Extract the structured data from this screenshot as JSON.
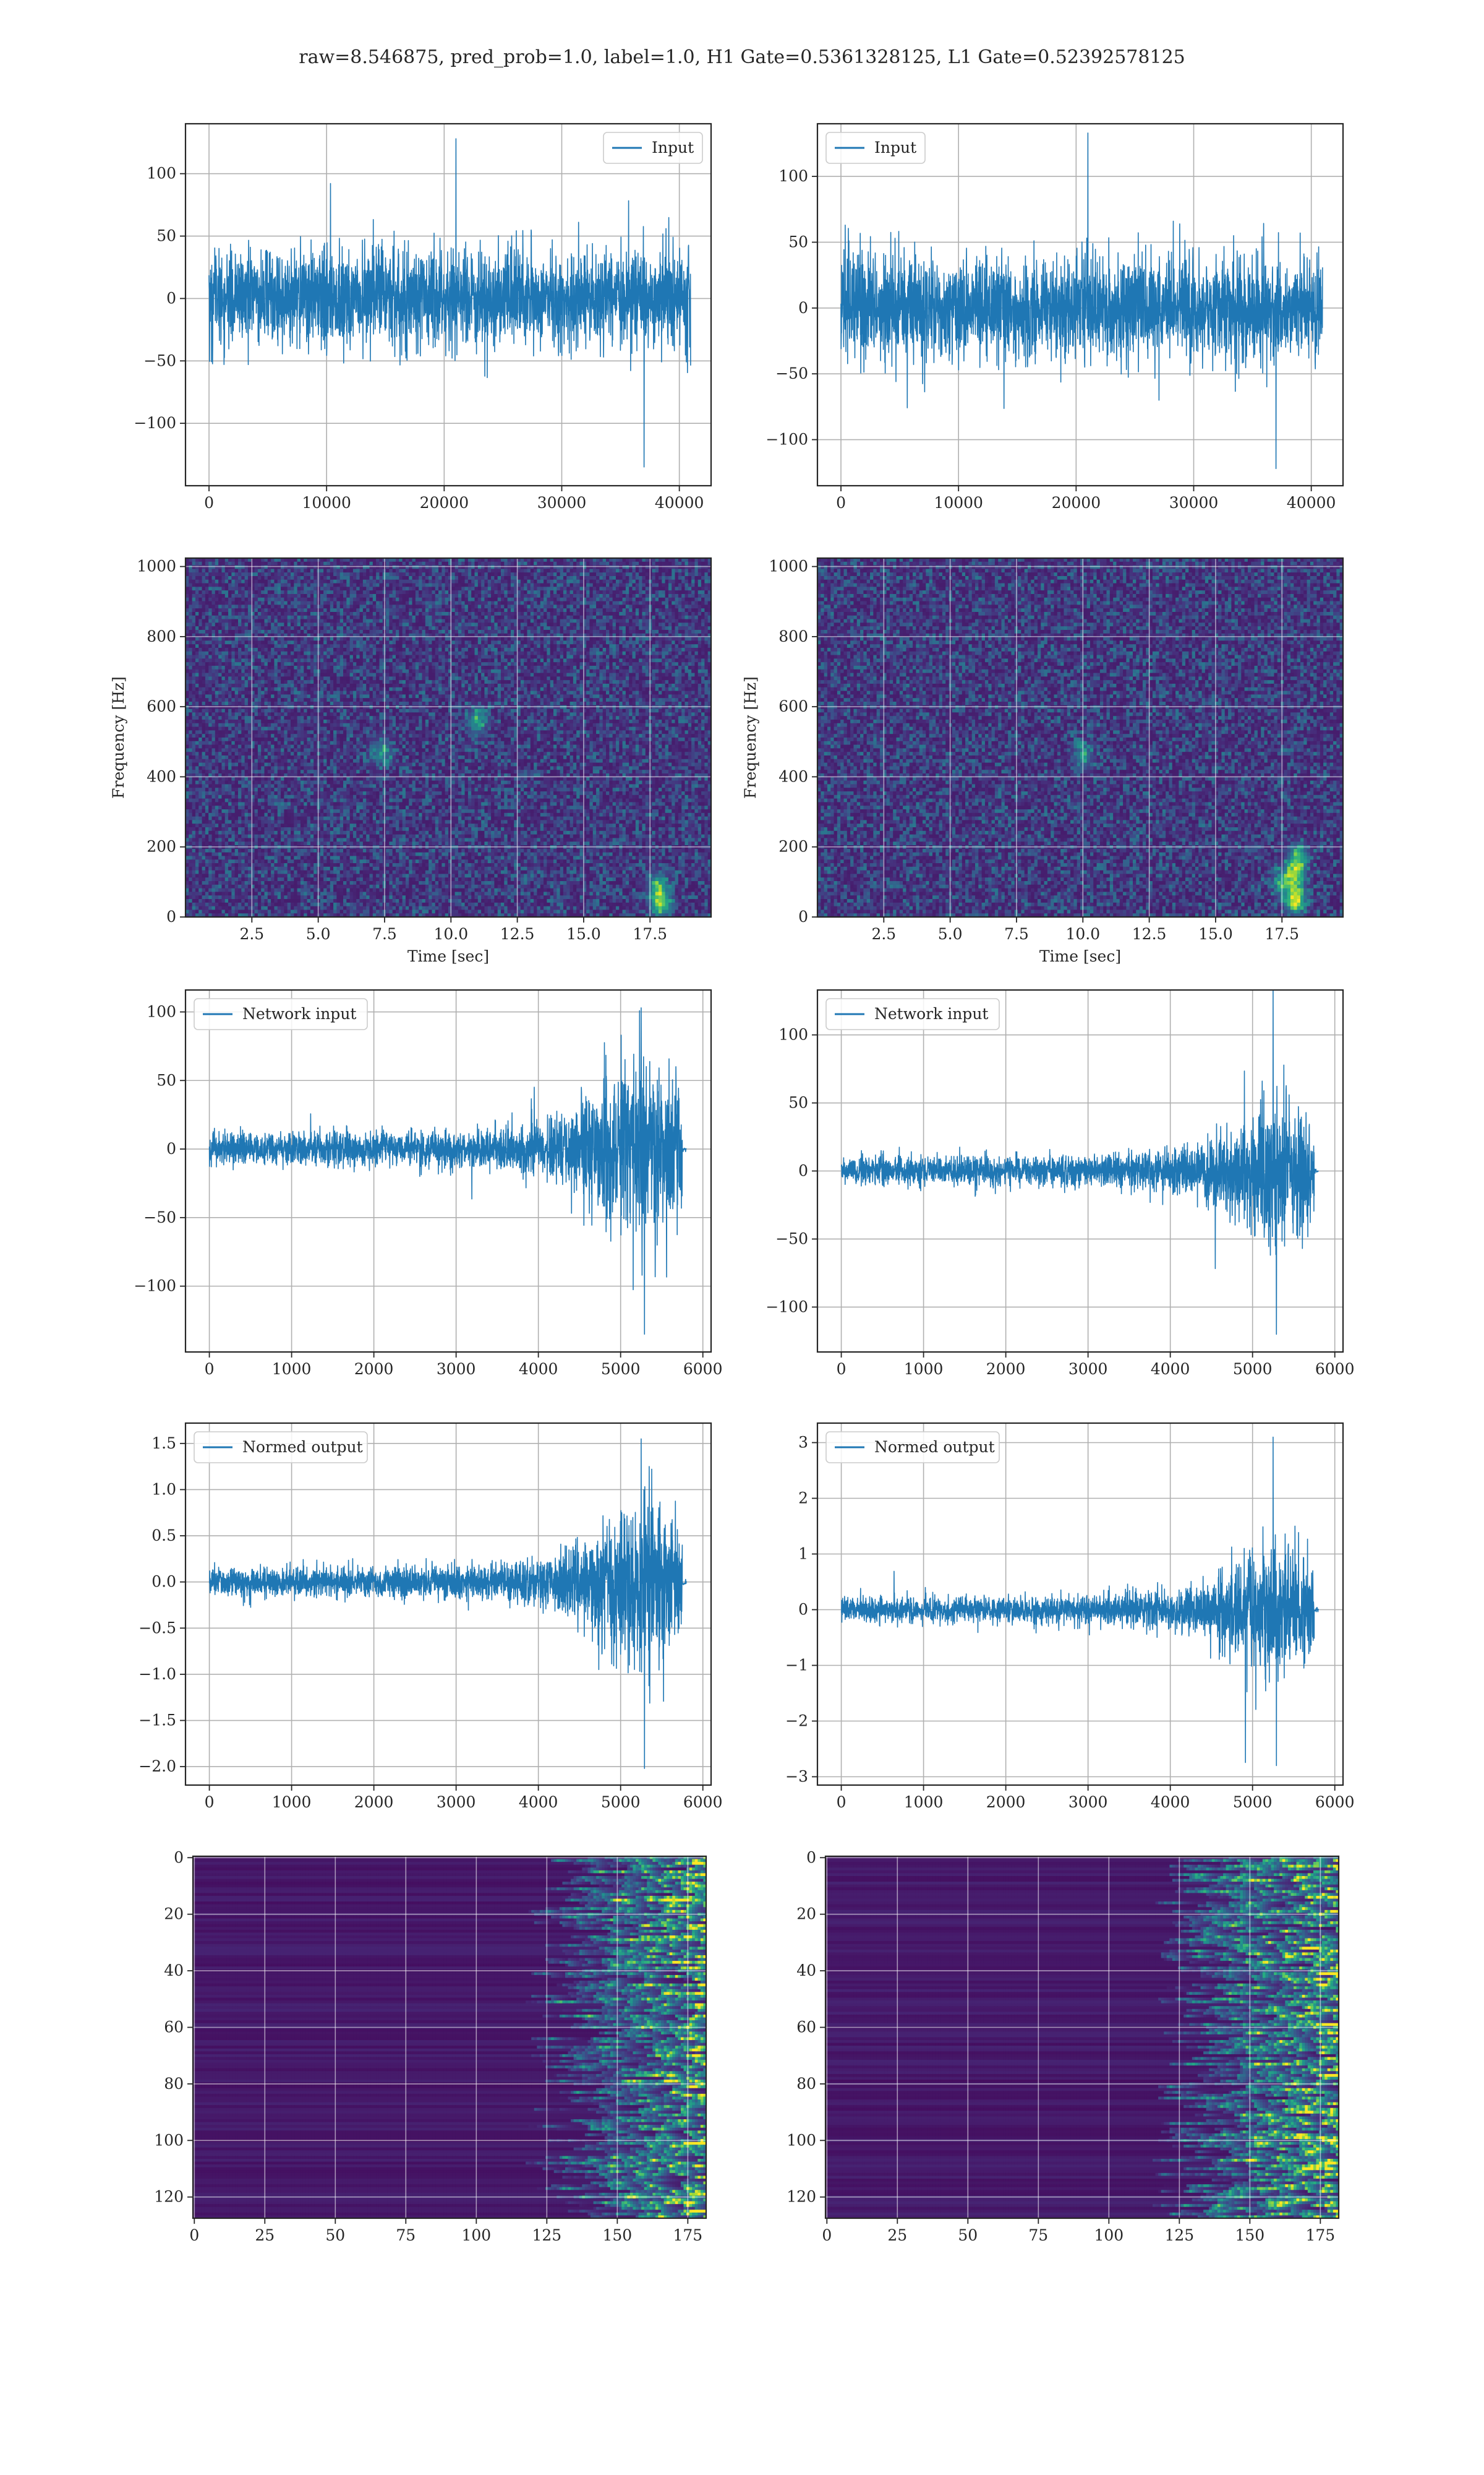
{
  "figure": {
    "suptitle": "raw=8.546875, pred_prob=1.0, label=1.0, H1 Gate=0.5361328125, L1 Gate=0.52392578125"
  },
  "colors": {
    "series": "#1f77b4",
    "viridis": [
      "#440154",
      "#472d7b",
      "#3b528b",
      "#2c728e",
      "#21918c",
      "#28ae80",
      "#5ec962",
      "#addc30",
      "#fde725"
    ]
  },
  "chart_data": [
    {
      "id": "h1-input",
      "type": "line",
      "grid": true,
      "legend_position": "top-right",
      "series": [
        {
          "name": "Input",
          "color": "#1f77b4"
        }
      ],
      "xlim": [
        -2000,
        42700
      ],
      "ylim": [
        -150,
        140
      ],
      "xticks": [
        0,
        10000,
        20000,
        30000,
        40000
      ],
      "xtick_labels": [
        "0",
        "10000",
        "20000",
        "30000",
        "40000"
      ],
      "yticks": [
        -100,
        -50,
        0,
        50,
        100
      ],
      "ytick_labels": [
        "−100",
        "−50",
        "0",
        "50",
        "100"
      ],
      "signal": {
        "x_range": [
          0,
          40960
        ],
        "baseline_amplitude": 35,
        "peak_max": 128,
        "peak_min": -135,
        "growth": []
      }
    },
    {
      "id": "l1-input",
      "type": "line",
      "grid": true,
      "legend_position": "top-left",
      "series": [
        {
          "name": "Input",
          "color": "#1f77b4"
        }
      ],
      "xlim": [
        -2000,
        42700
      ],
      "ylim": [
        -135,
        140
      ],
      "xticks": [
        0,
        10000,
        20000,
        30000,
        40000
      ],
      "xtick_labels": [
        "0",
        "10000",
        "20000",
        "30000",
        "40000"
      ],
      "yticks": [
        -100,
        -50,
        0,
        50,
        100
      ],
      "ytick_labels": [
        "−100",
        "−50",
        "0",
        "50",
        "100"
      ],
      "signal": {
        "x_range": [
          0,
          40960
        ],
        "baseline_amplitude": 35,
        "peak_max": 133,
        "peak_min": -122,
        "growth": []
      }
    },
    {
      "id": "h1-spectrogram",
      "type": "heatmap",
      "grid": true,
      "xlabel": "Time [sec]",
      "ylabel": "Frequency [Hz]",
      "xlim": [
        0,
        19.8
      ],
      "ylim": [
        0,
        1024
      ],
      "xticks": [
        2.5,
        5.0,
        7.5,
        10.0,
        12.5,
        15.0,
        17.5
      ],
      "xtick_labels": [
        "2.5",
        "5.0",
        "7.5",
        "10.0",
        "12.5",
        "15.0",
        "17.5"
      ],
      "yticks": [
        0,
        200,
        400,
        600,
        800,
        1000
      ],
      "ytick_labels": [
        "0",
        "200",
        "400",
        "600",
        "800",
        "1000"
      ],
      "bright_spots": [
        {
          "x": 17.9,
          "y": 40,
          "level": 0.65
        },
        {
          "x": 17.8,
          "y": 90,
          "level": 0.45
        },
        {
          "x": 11.0,
          "y": 560,
          "level": 0.4
        },
        {
          "x": 7.4,
          "y": 470,
          "level": 0.35
        }
      ]
    },
    {
      "id": "l1-spectrogram",
      "type": "heatmap",
      "grid": true,
      "xlabel": "Time [sec]",
      "ylabel": "Frequency [Hz]",
      "xlim": [
        0,
        19.8
      ],
      "ylim": [
        0,
        1024
      ],
      "xticks": [
        2.5,
        5.0,
        7.5,
        10.0,
        12.5,
        15.0,
        17.5
      ],
      "xtick_labels": [
        "2.5",
        "5.0",
        "7.5",
        "10.0",
        "12.5",
        "15.0",
        "17.5"
      ],
      "yticks": [
        0,
        200,
        400,
        600,
        800,
        1000
      ],
      "ytick_labels": [
        "0",
        "200",
        "400",
        "600",
        "800",
        "1000"
      ],
      "bright_spots": [
        {
          "x": 18.0,
          "y": 50,
          "level": 0.8
        },
        {
          "x": 18.0,
          "y": 120,
          "level": 0.6
        },
        {
          "x": 18.1,
          "y": 170,
          "level": 0.5
        },
        {
          "x": 17.5,
          "y": 100,
          "level": 0.4
        },
        {
          "x": 10.0,
          "y": 460,
          "level": 0.35
        }
      ]
    },
    {
      "id": "h1-network-input",
      "type": "line",
      "grid": true,
      "legend_position": "top-left",
      "series": [
        {
          "name": "Network input",
          "color": "#1f77b4"
        }
      ],
      "xlim": [
        -290,
        6100
      ],
      "ylim": [
        -148,
        116
      ],
      "xticks": [
        0,
        1000,
        2000,
        3000,
        4000,
        5000,
        6000
      ],
      "xtick_labels": [
        "0",
        "1000",
        "2000",
        "3000",
        "4000",
        "5000",
        "6000"
      ],
      "yticks": [
        -100,
        -50,
        0,
        50,
        100
      ],
      "ytick_labels": [
        "−100",
        "−50",
        "0",
        "50",
        "100"
      ],
      "signal": {
        "x_range": [
          0,
          5750
        ],
        "baseline_amplitude": 10,
        "peak_max": 103,
        "peak_min": -135,
        "growth": [
          [
            0,
            1
          ],
          [
            3200,
            1.2
          ],
          [
            4200,
            2.0
          ],
          [
            4700,
            4.0
          ],
          [
            5300,
            6.5
          ],
          [
            5750,
            4.5
          ]
        ],
        "tail": [
          5750,
          5800,
          2
        ]
      }
    },
    {
      "id": "l1-network-input",
      "type": "line",
      "grid": true,
      "legend_position": "top-left",
      "series": [
        {
          "name": "Network input",
          "color": "#1f77b4"
        }
      ],
      "xlim": [
        -290,
        6100
      ],
      "ylim": [
        -133,
        133
      ],
      "xticks": [
        0,
        1000,
        2000,
        3000,
        4000,
        5000,
        6000
      ],
      "xtick_labels": [
        "0",
        "1000",
        "2000",
        "3000",
        "4000",
        "5000",
        "6000"
      ],
      "yticks": [
        -100,
        -50,
        0,
        50,
        100
      ],
      "ytick_labels": [
        "−100",
        "−50",
        "0",
        "50",
        "100"
      ],
      "signal": {
        "x_range": [
          0,
          5750
        ],
        "baseline_amplitude": 9,
        "peak_max": 133,
        "peak_min": -120,
        "growth": [
          [
            0,
            1
          ],
          [
            3300,
            1.2
          ],
          [
            4300,
            1.8
          ],
          [
            4700,
            3.5
          ],
          [
            5250,
            6.0
          ],
          [
            5750,
            4.0
          ]
        ],
        "tail": [
          5750,
          5800,
          2
        ]
      }
    },
    {
      "id": "h1-normed-output",
      "type": "line",
      "grid": true,
      "legend_position": "top-left",
      "series": [
        {
          "name": "Normed output",
          "color": "#1f77b4"
        }
      ],
      "xlim": [
        -290,
        6100
      ],
      "ylim": [
        -2.2,
        1.72
      ],
      "xticks": [
        0,
        1000,
        2000,
        3000,
        4000,
        5000,
        6000
      ],
      "xtick_labels": [
        "0",
        "1000",
        "2000",
        "3000",
        "4000",
        "5000",
        "6000"
      ],
      "yticks": [
        -2.0,
        -1.5,
        -1.0,
        -0.5,
        0.0,
        0.5,
        1.0,
        1.5
      ],
      "ytick_labels": [
        "−2.0",
        "−1.5",
        "−1.0",
        "−0.5",
        "0.0",
        "0.5",
        "1.0",
        "1.5"
      ],
      "signal": {
        "x_range": [
          0,
          5750
        ],
        "baseline_amplitude": 0.13,
        "peak_max": 1.55,
        "peak_min": -2.02,
        "growth": [
          [
            0,
            1
          ],
          [
            3200,
            1.2
          ],
          [
            4200,
            2.0
          ],
          [
            4700,
            4.0
          ],
          [
            5300,
            6.5
          ],
          [
            5750,
            4.5
          ]
        ],
        "tail": [
          5750,
          5800,
          0.03
        ]
      }
    },
    {
      "id": "l1-normed-output",
      "type": "line",
      "grid": true,
      "legend_position": "top-left",
      "series": [
        {
          "name": "Normed output",
          "color": "#1f77b4"
        }
      ],
      "xlim": [
        -290,
        6100
      ],
      "ylim": [
        -3.15,
        3.35
      ],
      "xticks": [
        0,
        1000,
        2000,
        3000,
        4000,
        5000,
        6000
      ],
      "xtick_labels": [
        "0",
        "1000",
        "2000",
        "3000",
        "4000",
        "5000",
        "6000"
      ],
      "yticks": [
        -3,
        -2,
        -1,
        0,
        1,
        2,
        3
      ],
      "ytick_labels": [
        "−3",
        "−2",
        "−1",
        "0",
        "1",
        "2",
        "3"
      ],
      "signal": {
        "x_range": [
          0,
          5750
        ],
        "baseline_amplitude": 0.2,
        "peak_max": 3.1,
        "peak_min": -2.8,
        "growth": [
          [
            0,
            1
          ],
          [
            3300,
            1.2
          ],
          [
            4300,
            1.8
          ],
          [
            4700,
            3.5
          ],
          [
            5250,
            6.0
          ],
          [
            5750,
            4.0
          ]
        ],
        "tail": [
          5750,
          5800,
          0.04
        ]
      }
    },
    {
      "id": "h1-activations",
      "type": "heatmap",
      "grid": true,
      "y_inverted": true,
      "rows": 128,
      "columns": 182,
      "xlim": [
        -0.5,
        181.5
      ],
      "ylim": [
        127.5,
        -0.5
      ],
      "xticks": [
        0,
        25,
        50,
        75,
        100,
        125,
        150,
        175
      ],
      "xtick_labels": [
        "0",
        "25",
        "50",
        "75",
        "100",
        "125",
        "150",
        "175"
      ],
      "yticks": [
        0,
        20,
        40,
        60,
        80,
        100,
        120
      ],
      "ytick_labels": [
        "0",
        "20",
        "40",
        "60",
        "80",
        "100",
        "120"
      ],
      "activity_onset_column": 118,
      "peak_level": 0.85
    },
    {
      "id": "l1-activations",
      "type": "heatmap",
      "grid": true,
      "y_inverted": true,
      "rows": 128,
      "columns": 182,
      "xlim": [
        -0.5,
        181.5
      ],
      "ylim": [
        127.5,
        -0.5
      ],
      "xticks": [
        0,
        25,
        50,
        75,
        100,
        125,
        150,
        175
      ],
      "xtick_labels": [
        "0",
        "25",
        "50",
        "75",
        "100",
        "125",
        "150",
        "175"
      ],
      "yticks": [
        0,
        20,
        40,
        60,
        80,
        100,
        120
      ],
      "ytick_labels": [
        "0",
        "20",
        "40",
        "60",
        "80",
        "100",
        "120"
      ],
      "activity_onset_column": 115,
      "peak_level": 0.9
    }
  ]
}
